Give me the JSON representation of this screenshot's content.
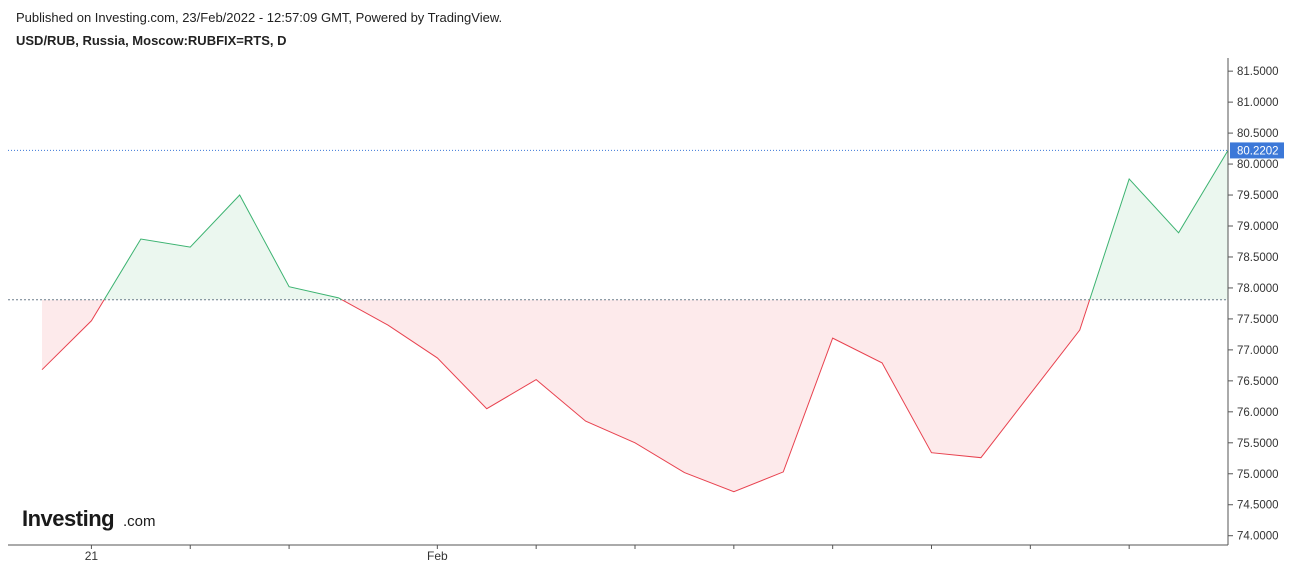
{
  "header": {
    "published": "Published on Investing.com, 23/Feb/2022 - 12:57:09 GMT, Powered by TradingView.",
    "symbol": "USD/RUB, Russia, Moscow:RUBFIX=RTS, D"
  },
  "logo": {
    "brand": "Investing",
    "suffix": ".com"
  },
  "chart_data": {
    "type": "baseline",
    "categories": [
      null,
      "21",
      null,
      null,
      null,
      null,
      null,
      null,
      "Feb",
      null,
      null,
      null,
      null,
      null,
      null,
      null,
      null,
      null,
      null,
      null,
      null,
      null,
      null,
      null,
      null
    ],
    "values": [
      76.68,
      77.47,
      78.79,
      78.66,
      79.5,
      78.02,
      77.84,
      77.4,
      76.87,
      76.05,
      76.52,
      75.85,
      75.5,
      75.02,
      74.71,
      75.03,
      77.19,
      76.79,
      75.34,
      75.26,
      76.29,
      77.32,
      79.76,
      78.89,
      80.2202
    ],
    "baseline": 77.81,
    "last_price": 80.2202,
    "colors": {
      "above_line": "#3cb371",
      "above_fill": "#ebf7ef",
      "below_line": "#e8424f",
      "below_fill": "#fdeaeb",
      "last_price": "#3c78d8"
    },
    "ylim": [
      73.85,
      81.68
    ],
    "yticks": [
      {
        "value": 74.0,
        "label": "74.0000"
      },
      {
        "value": 74.5,
        "label": "74.5000"
      },
      {
        "value": 75.0,
        "label": "75.0000"
      },
      {
        "value": 75.5,
        "label": "75.5000"
      },
      {
        "value": 76.0,
        "label": "76.0000"
      },
      {
        "value": 76.5,
        "label": "76.5000"
      },
      {
        "value": 77.0,
        "label": "77.0000"
      },
      {
        "value": 77.5,
        "label": "77.5000"
      },
      {
        "value": 78.0,
        "label": "78.0000"
      },
      {
        "value": 78.5,
        "label": "78.5000"
      },
      {
        "value": 79.0,
        "label": "79.0000"
      },
      {
        "value": 79.5,
        "label": "79.5000"
      },
      {
        "value": 80.0,
        "label": "80.0000"
      },
      {
        "value": 80.5,
        "label": "80.5000"
      },
      {
        "value": 81.0,
        "label": "81.0000"
      },
      {
        "value": 81.5,
        "label": "81.5000"
      }
    ]
  }
}
